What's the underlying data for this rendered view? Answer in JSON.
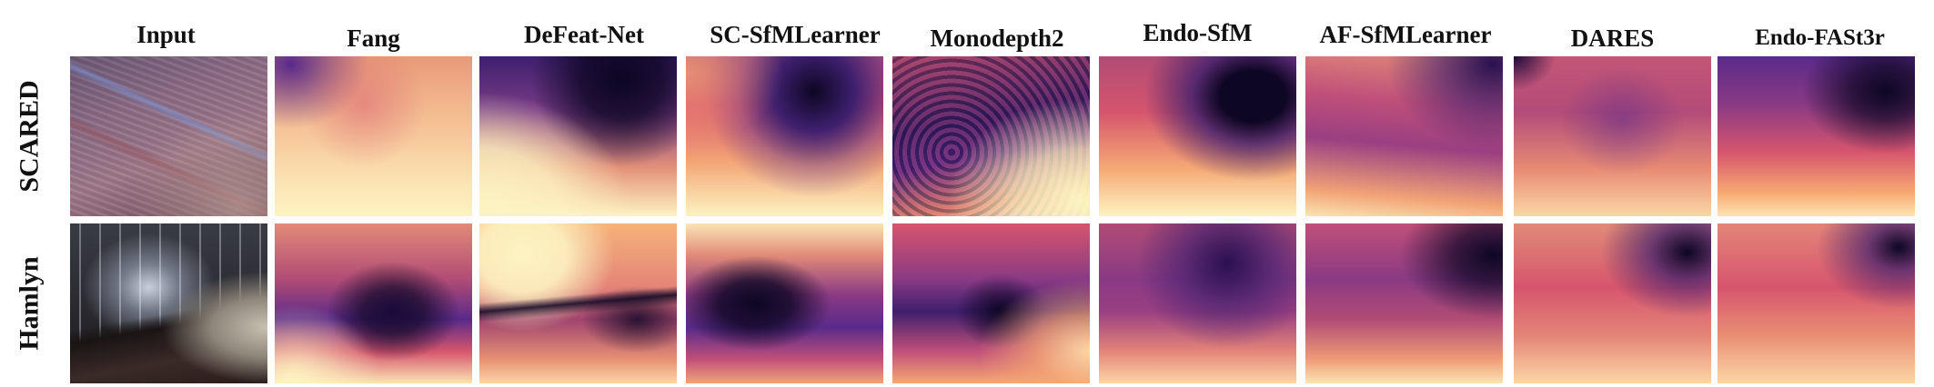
{
  "columns": [
    "Input",
    "Fang",
    "DeFeat-Net",
    "SC-SfMLearner",
    "Monodepth2",
    "Endo-SfM",
    "AF-SfMLearner",
    "DARES",
    "Endo-FASt3r"
  ],
  "rows": [
    "SCARED",
    "Hamlyn"
  ],
  "colors": {
    "depth_near": "#fdf3c2",
    "depth_mid_warm": "#f7a872",
    "depth_mid": "#d6556d",
    "depth_far_purple": "#5a2a8a",
    "depth_far": "#0d0624",
    "scared_tissue": "#8a6a8a",
    "hamlyn_dark": "#2a2a30"
  }
}
